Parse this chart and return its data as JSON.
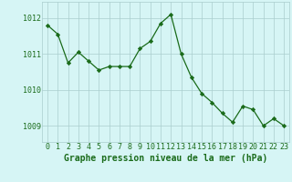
{
  "x": [
    0,
    1,
    2,
    3,
    4,
    5,
    6,
    7,
    8,
    9,
    10,
    11,
    12,
    13,
    14,
    15,
    16,
    17,
    18,
    19,
    20,
    21,
    22,
    23
  ],
  "y": [
    1011.8,
    1011.55,
    1010.75,
    1011.05,
    1010.8,
    1010.55,
    1010.65,
    1010.65,
    1010.65,
    1011.15,
    1011.35,
    1011.85,
    1012.1,
    1011.0,
    1010.35,
    1009.9,
    1009.65,
    1009.35,
    1009.1,
    1009.55,
    1009.45,
    1009.0,
    1009.2,
    1009.0
  ],
  "line_color": "#1a6b1a",
  "marker": "D",
  "marker_size": 2.2,
  "bg_color": "#d6f5f5",
  "grid_color": "#aacece",
  "xlabel": "Graphe pression niveau de la mer (hPa)",
  "xlabel_color": "#1a6b1a",
  "yticks": [
    1009,
    1010,
    1011,
    1012
  ],
  "xticks": [
    0,
    1,
    2,
    3,
    4,
    5,
    6,
    7,
    8,
    9,
    10,
    11,
    12,
    13,
    14,
    15,
    16,
    17,
    18,
    19,
    20,
    21,
    22,
    23
  ],
  "ylim": [
    1008.55,
    1012.45
  ],
  "xlim": [
    -0.5,
    23.5
  ],
  "tick_fontsize": 6.0,
  "xlabel_fontsize": 7.0
}
